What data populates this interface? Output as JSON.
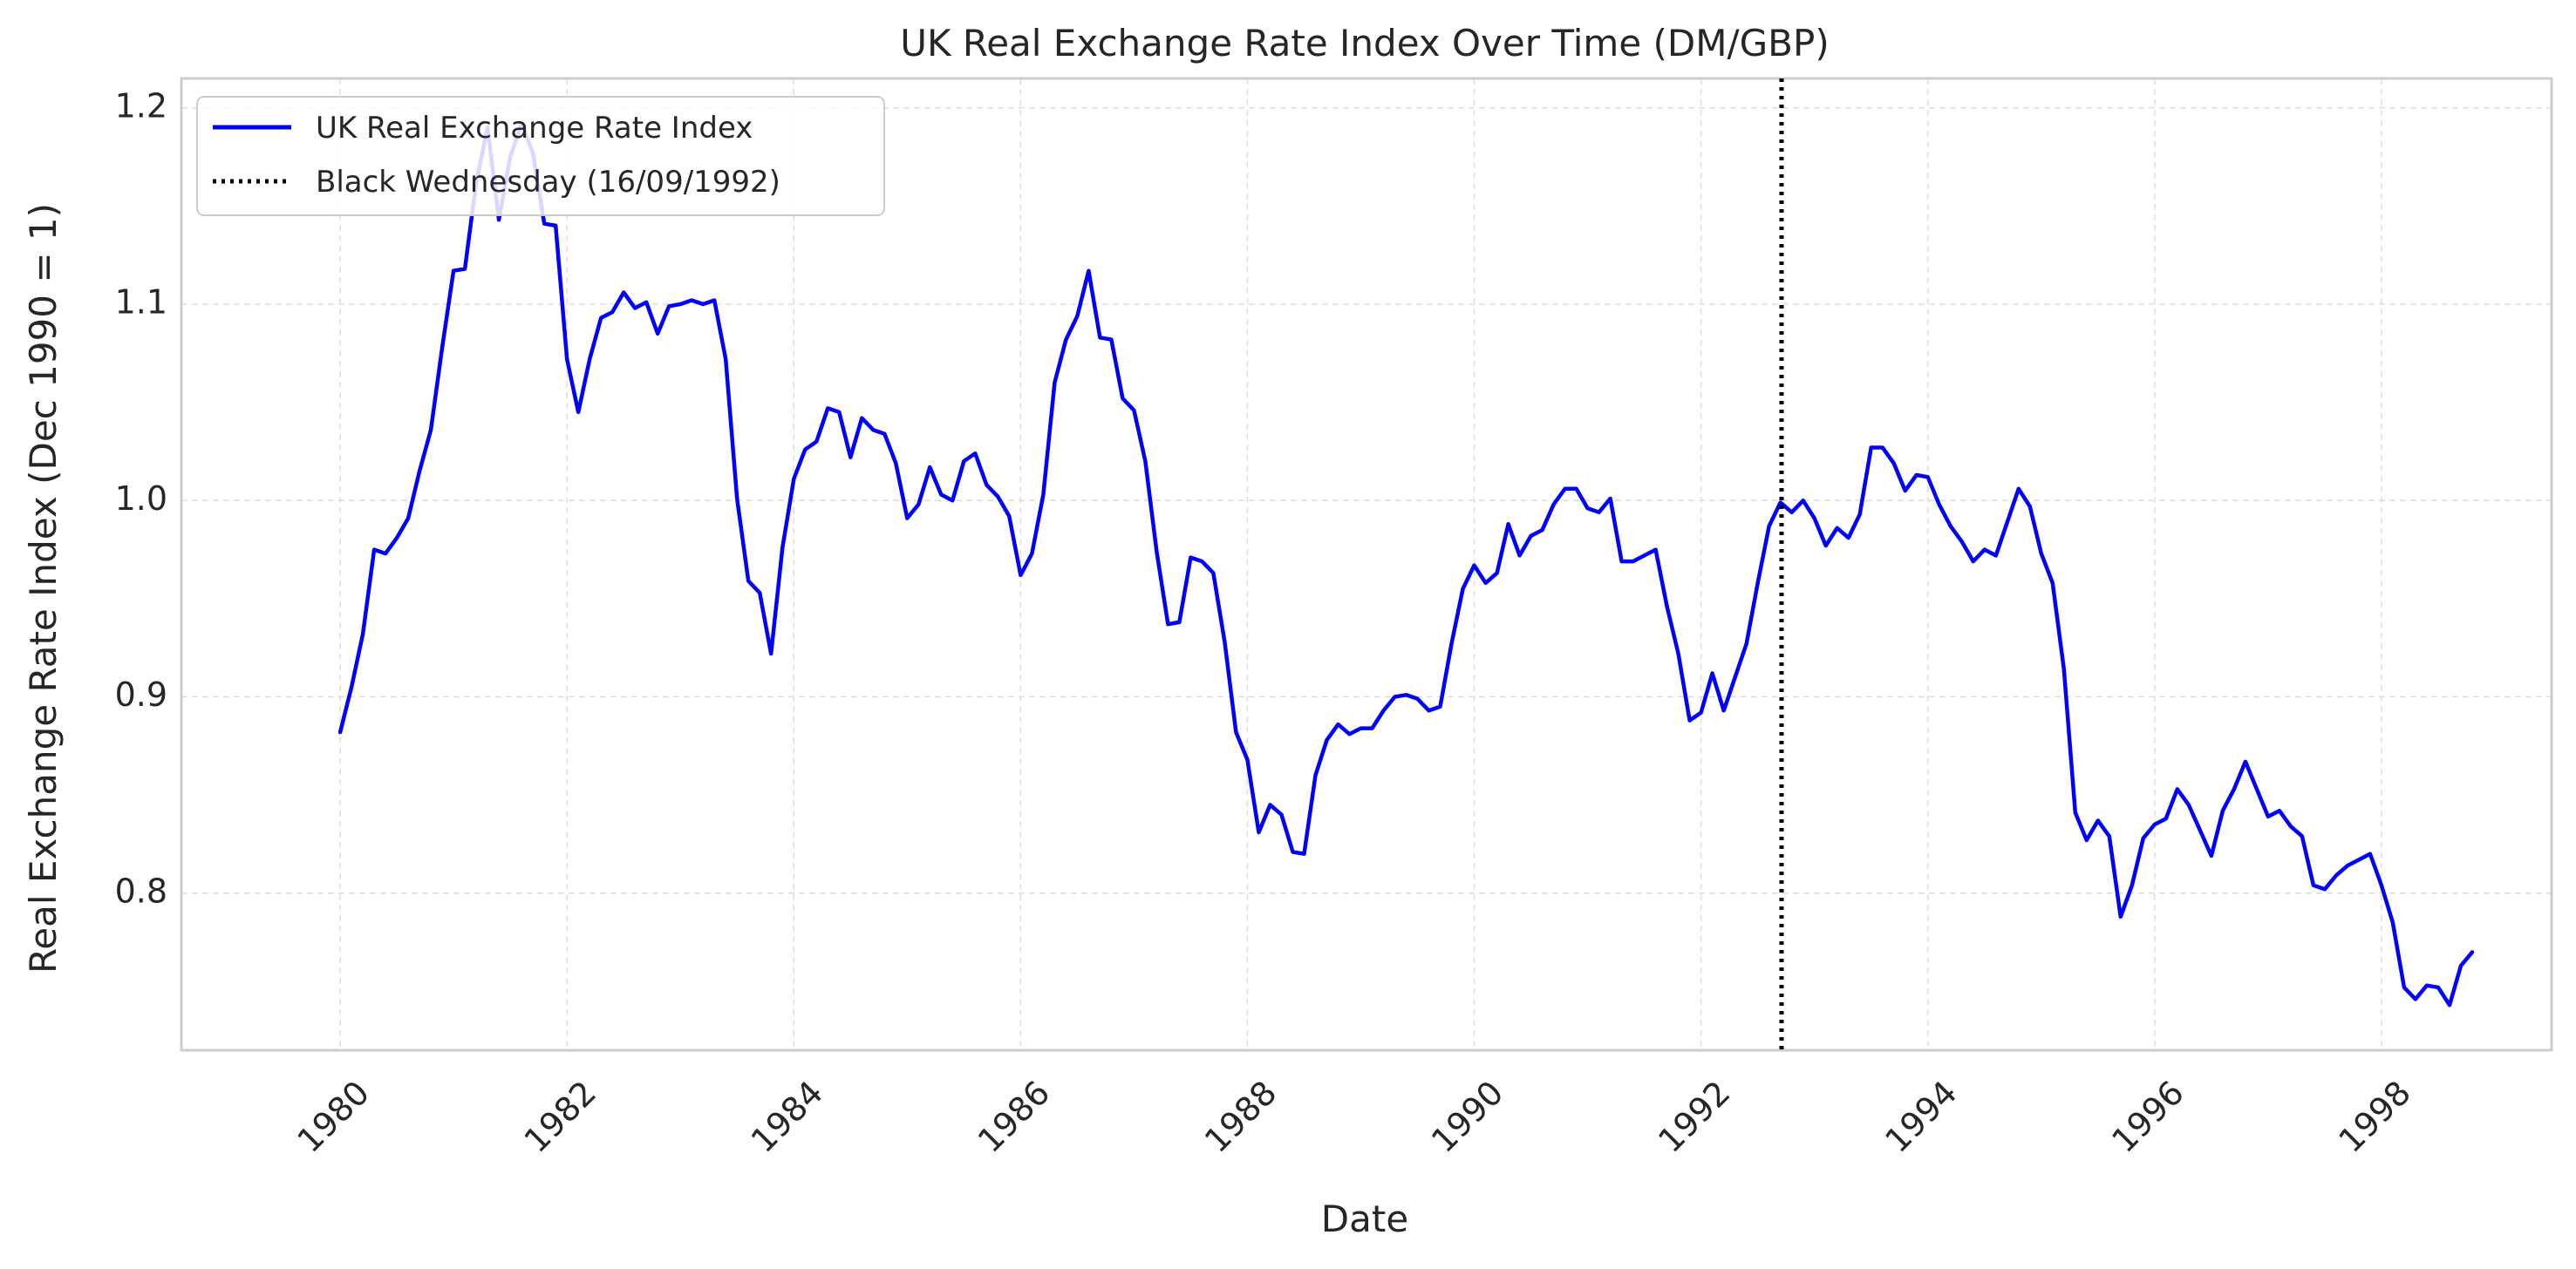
{
  "chart_data": {
    "type": "line",
    "title": "UK Real Exchange Rate Index Over Time (DM/GBP)",
    "xlabel": "Date",
    "ylabel": "Real Exchange Rate Index (Dec 1990 = 1)",
    "xlim": [
      1978.6,
      1999.5
    ],
    "ylim": [
      0.72,
      1.215
    ],
    "x_ticks": [
      1980,
      1982,
      1984,
      1986,
      1988,
      1990,
      1992,
      1994,
      1996,
      1998
    ],
    "x_tick_labels": [
      "1980",
      "1982",
      "1984",
      "1986",
      "1988",
      "1990",
      "1992",
      "1994",
      "1996",
      "1998"
    ],
    "y_ticks": [
      0.8,
      0.9,
      1.0,
      1.1,
      1.2
    ],
    "y_tick_labels": [
      "0.8",
      "0.9",
      "1.0",
      "1.1",
      "1.2"
    ],
    "grid": true,
    "legend_position": "top-left",
    "series": [
      {
        "name": "UK Real Exchange Rate Index",
        "color": "#0000ff",
        "style": "solid",
        "points": [
          [
            1980.0,
            0.882
          ],
          [
            1980.1,
            0.905
          ],
          [
            1980.2,
            0.932
          ],
          [
            1980.3,
            0.975
          ],
          [
            1980.4,
            0.973
          ],
          [
            1980.5,
            0.981
          ],
          [
            1980.6,
            0.991
          ],
          [
            1980.7,
            1.015
          ],
          [
            1980.8,
            1.036
          ],
          [
            1980.9,
            1.078
          ],
          [
            1981.0,
            1.117
          ],
          [
            1981.1,
            1.118
          ],
          [
            1981.2,
            1.162
          ],
          [
            1981.3,
            1.19
          ],
          [
            1981.4,
            1.143
          ],
          [
            1981.5,
            1.175
          ],
          [
            1981.6,
            1.192
          ],
          [
            1981.7,
            1.177
          ],
          [
            1981.8,
            1.141
          ],
          [
            1981.9,
            1.14
          ],
          [
            1982.0,
            1.072
          ],
          [
            1982.1,
            1.045
          ],
          [
            1982.2,
            1.072
          ],
          [
            1982.3,
            1.093
          ],
          [
            1982.4,
            1.096
          ],
          [
            1982.5,
            1.106
          ],
          [
            1982.6,
            1.098
          ],
          [
            1982.7,
            1.101
          ],
          [
            1982.8,
            1.085
          ],
          [
            1982.9,
            1.099
          ],
          [
            1983.0,
            1.1
          ],
          [
            1983.1,
            1.102
          ],
          [
            1983.2,
            1.1
          ],
          [
            1983.3,
            1.102
          ],
          [
            1983.4,
            1.072
          ],
          [
            1983.5,
            1.001
          ],
          [
            1983.6,
            0.959
          ],
          [
            1983.7,
            0.953
          ],
          [
            1983.8,
            0.922
          ],
          [
            1983.9,
            0.976
          ],
          [
            1984.0,
            1.011
          ],
          [
            1984.1,
            1.026
          ],
          [
            1984.2,
            1.03
          ],
          [
            1984.3,
            1.047
          ],
          [
            1984.4,
            1.045
          ],
          [
            1984.5,
            1.022
          ],
          [
            1984.6,
            1.042
          ],
          [
            1984.7,
            1.036
          ],
          [
            1984.8,
            1.034
          ],
          [
            1984.9,
            1.019
          ],
          [
            1985.0,
            0.991
          ],
          [
            1985.1,
            0.998
          ],
          [
            1985.2,
            1.017
          ],
          [
            1985.3,
            1.003
          ],
          [
            1985.4,
            1.0
          ],
          [
            1985.5,
            1.02
          ],
          [
            1985.6,
            1.024
          ],
          [
            1985.7,
            1.008
          ],
          [
            1985.8,
            1.002
          ],
          [
            1985.9,
            0.992
          ],
          [
            1986.0,
            0.962
          ],
          [
            1986.1,
            0.973
          ],
          [
            1986.2,
            1.003
          ],
          [
            1986.3,
            1.06
          ],
          [
            1986.4,
            1.082
          ],
          [
            1986.5,
            1.094
          ],
          [
            1986.6,
            1.117
          ],
          [
            1986.7,
            1.083
          ],
          [
            1986.8,
            1.082
          ],
          [
            1986.9,
            1.052
          ],
          [
            1987.0,
            1.046
          ],
          [
            1987.1,
            1.02
          ],
          [
            1987.2,
            0.974
          ],
          [
            1987.3,
            0.937
          ],
          [
            1987.4,
            0.938
          ],
          [
            1987.5,
            0.971
          ],
          [
            1987.6,
            0.969
          ],
          [
            1987.7,
            0.963
          ],
          [
            1987.8,
            0.928
          ],
          [
            1987.9,
            0.882
          ],
          [
            1988.0,
            0.868
          ],
          [
            1988.1,
            0.831
          ],
          [
            1988.2,
            0.845
          ],
          [
            1988.3,
            0.84
          ],
          [
            1988.4,
            0.821
          ],
          [
            1988.5,
            0.82
          ],
          [
            1988.6,
            0.86
          ],
          [
            1988.7,
            0.878
          ],
          [
            1988.8,
            0.886
          ],
          [
            1988.9,
            0.881
          ],
          [
            1989.0,
            0.884
          ],
          [
            1989.1,
            0.884
          ],
          [
            1989.2,
            0.893
          ],
          [
            1989.3,
            0.9
          ],
          [
            1989.4,
            0.901
          ],
          [
            1989.5,
            0.899
          ],
          [
            1989.6,
            0.893
          ],
          [
            1989.7,
            0.895
          ],
          [
            1989.8,
            0.927
          ],
          [
            1989.9,
            0.955
          ],
          [
            1990.0,
            0.967
          ],
          [
            1990.1,
            0.958
          ],
          [
            1990.2,
            0.963
          ],
          [
            1990.3,
            0.988
          ],
          [
            1990.4,
            0.972
          ],
          [
            1990.5,
            0.982
          ],
          [
            1990.6,
            0.985
          ],
          [
            1990.7,
            0.998
          ],
          [
            1990.8,
            1.006
          ],
          [
            1990.9,
            1.006
          ],
          [
            1991.0,
            0.996
          ],
          [
            1991.1,
            0.994
          ],
          [
            1991.2,
            1.001
          ],
          [
            1991.3,
            0.969
          ],
          [
            1991.4,
            0.969
          ],
          [
            1991.5,
            0.972
          ],
          [
            1991.6,
            0.975
          ],
          [
            1991.7,
            0.946
          ],
          [
            1991.8,
            0.922
          ],
          [
            1991.9,
            0.888
          ],
          [
            1992.0,
            0.892
          ],
          [
            1992.1,
            0.912
          ],
          [
            1992.2,
            0.893
          ],
          [
            1992.3,
            0.91
          ],
          [
            1992.4,
            0.927
          ],
          [
            1992.5,
            0.958
          ],
          [
            1992.6,
            0.987
          ],
          [
            1992.7,
            0.999
          ],
          [
            1992.8,
            0.994
          ],
          [
            1992.9,
            1.0
          ],
          [
            1993.0,
            0.991
          ],
          [
            1993.1,
            0.977
          ],
          [
            1993.2,
            0.986
          ],
          [
            1993.3,
            0.981
          ],
          [
            1993.4,
            0.993
          ],
          [
            1993.5,
            1.027
          ],
          [
            1993.6,
            1.027
          ],
          [
            1993.7,
            1.019
          ],
          [
            1993.8,
            1.005
          ],
          [
            1993.9,
            1.013
          ],
          [
            1994.0,
            1.012
          ],
          [
            1994.1,
            0.998
          ],
          [
            1994.2,
            0.987
          ],
          [
            1994.3,
            0.979
          ],
          [
            1994.4,
            0.969
          ],
          [
            1994.5,
            0.975
          ],
          [
            1994.6,
            0.972
          ],
          [
            1994.7,
            0.989
          ],
          [
            1994.8,
            1.006
          ],
          [
            1994.9,
            0.997
          ],
          [
            1995.0,
            0.973
          ],
          [
            1995.1,
            0.958
          ],
          [
            1995.2,
            0.914
          ],
          [
            1995.3,
            0.841
          ],
          [
            1995.4,
            0.827
          ],
          [
            1995.5,
            0.837
          ],
          [
            1995.6,
            0.829
          ],
          [
            1995.7,
            0.788
          ],
          [
            1995.8,
            0.804
          ],
          [
            1995.9,
            0.828
          ],
          [
            1996.0,
            0.835
          ],
          [
            1996.1,
            0.838
          ],
          [
            1996.2,
            0.853
          ],
          [
            1996.3,
            0.845
          ],
          [
            1996.4,
            0.832
          ],
          [
            1996.5,
            0.819
          ],
          [
            1996.6,
            0.842
          ],
          [
            1996.7,
            0.853
          ],
          [
            1996.8,
            0.867
          ],
          [
            1996.9,
            0.853
          ],
          [
            1997.0,
            0.839
          ],
          [
            1997.1,
            0.842
          ],
          [
            1997.2,
            0.834
          ],
          [
            1997.3,
            0.829
          ],
          [
            1997.4,
            0.804
          ],
          [
            1997.5,
            0.802
          ],
          [
            1997.6,
            0.809
          ],
          [
            1997.7,
            0.814
          ],
          [
            1997.8,
            0.817
          ],
          [
            1997.9,
            0.82
          ],
          [
            1998.0,
            0.804
          ],
          [
            1998.1,
            0.785
          ],
          [
            1998.2,
            0.752
          ],
          [
            1998.3,
            0.746
          ],
          [
            1998.4,
            0.753
          ],
          [
            1998.5,
            0.752
          ],
          [
            1998.6,
            0.743
          ],
          [
            1998.7,
            0.763
          ],
          [
            1998.8,
            0.77
          ]
        ]
      }
    ],
    "vlines": [
      {
        "name": "Black Wednesday (16/09/1992)",
        "color": "#000000",
        "style": "dotted",
        "x": 1992.71
      }
    ]
  }
}
